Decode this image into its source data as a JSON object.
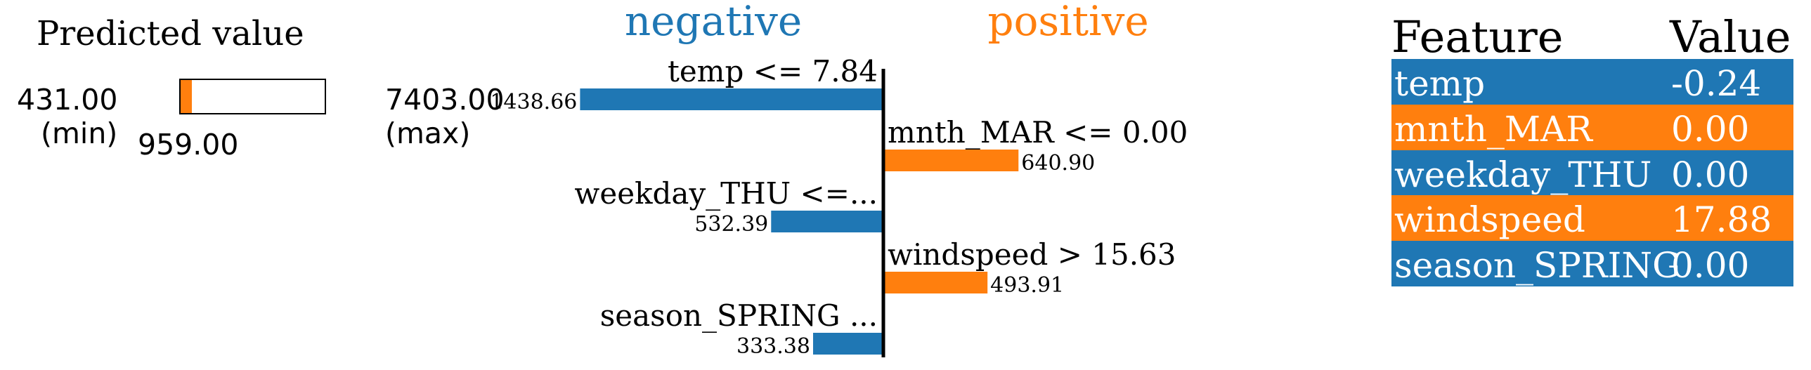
{
  "predicted": {
    "title": "Predicted value",
    "min": "431.00",
    "min_label": "(min)",
    "max": "7403.00",
    "max_label": "(max)",
    "value_label": "959.00",
    "min_num": 431.0,
    "max_num": 7403.0,
    "value_num": 959.0,
    "color": "#ff7f0e"
  },
  "chart_data": {
    "type": "bar",
    "negative_label": "negative",
    "positive_label": "positive",
    "negative_color": "#1f77b4",
    "positive_color": "#ff7f0e",
    "categories": [
      "temp <= 7.84",
      "mnth_MAR <= 0.00",
      "weekday_THU <=...",
      "windspeed > 15.63",
      "season_SPRING ..."
    ],
    "values": [
      -1438.66,
      640.9,
      -532.39,
      493.91,
      -333.38
    ],
    "value_labels": [
      "1438.66",
      "640.90",
      "532.39",
      "493.91",
      "333.38"
    ]
  },
  "table": {
    "headers": [
      "Feature",
      "Value"
    ],
    "rows": [
      {
        "feature": "temp",
        "value": "-0.24",
        "color": "#1f77b4"
      },
      {
        "feature": "mnth_MAR",
        "value": "0.00",
        "color": "#ff7f0e"
      },
      {
        "feature": "weekday_THU",
        "value": "0.00",
        "color": "#1f77b4"
      },
      {
        "feature": "windspeed",
        "value": "17.88",
        "color": "#ff7f0e"
      },
      {
        "feature": "season_SPRING",
        "value": "0.00",
        "color": "#1f77b4"
      }
    ]
  }
}
